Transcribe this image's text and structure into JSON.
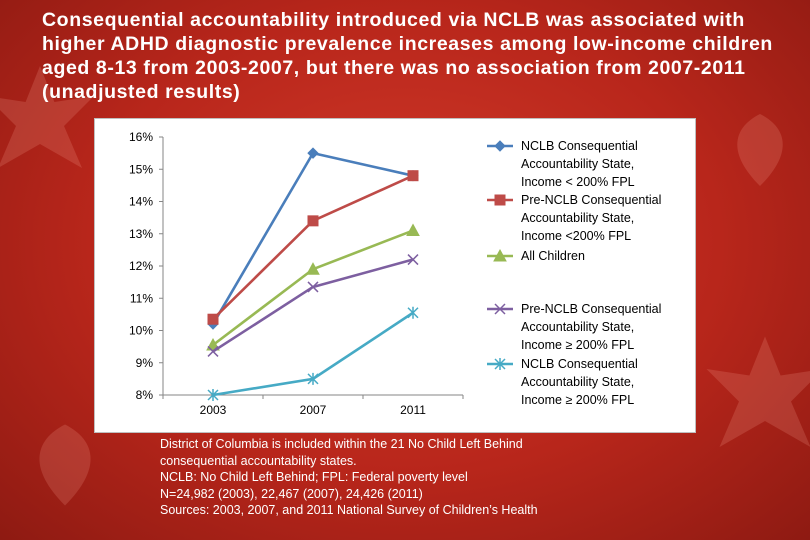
{
  "slide": {
    "title": "Consequential accountability introduced via NCLB was associated with higher ADHD diagnostic prevalence increases among low-income children aged 8-13 from 2003-2007, but there was no association from 2007-2011 (unadjusted results)",
    "notes": [
      "District of Columbia is included within the 21 No Child Left Behind",
      "consequential accountability states.",
      "NCLB: No Child Left Behind; FPL: Federal poverty level",
      "N=24,982 (2003), 22,467 (2007), 24,426 (2011)",
      "Sources: 2003, 2007, and 2011 National Survey of Children’s Health"
    ]
  },
  "chart_data": {
    "type": "line",
    "title": "",
    "xlabel": "",
    "ylabel": "",
    "categories": [
      "2003",
      "2007",
      "2011"
    ],
    "ylim": [
      8,
      16
    ],
    "yticks": [
      "8%",
      "9%",
      "10%",
      "11%",
      "12%",
      "13%",
      "14%",
      "15%",
      "16%"
    ],
    "grid": false,
    "legend_position": "right",
    "series": [
      {
        "name": "NCLB Consequential Accountability State, Income < 200% FPL",
        "legend_lines": [
          "NCLB Consequential",
          "Accountability State,",
          "Income < 200% FPL"
        ],
        "values": [
          10.2,
          15.5,
          14.8
        ],
        "color": "#4a7ebb",
        "marker": "diamond"
      },
      {
        "name": "Pre-NCLB Consequential Accountability State, Income <200% FPL",
        "legend_lines": [
          "Pre-NCLB Consequential",
          "Accountability State,",
          "Income <200% FPL"
        ],
        "values": [
          10.35,
          13.4,
          14.8
        ],
        "color": "#be4b48",
        "marker": "square"
      },
      {
        "name": "All Children",
        "legend_lines": [
          "All Children"
        ],
        "values": [
          9.55,
          11.9,
          13.1
        ],
        "color": "#98b954",
        "marker": "triangle"
      },
      {
        "name": "Pre-NCLB Consequential Accountability State, Income ≥ 200% FPL",
        "legend_lines": [
          "Pre-NCLB Consequential",
          "Accountability State,",
          "Income ≥ 200% FPL"
        ],
        "values": [
          9.35,
          11.35,
          12.2
        ],
        "color": "#7d5fa0",
        "marker": "x"
      },
      {
        "name": "NCLB Consequential Accountability State, Income ≥ 200% FPL",
        "legend_lines": [
          "NCLB Consequential",
          "Accountability State,",
          "Income ≥ 200% FPL"
        ],
        "values": [
          8.0,
          8.5,
          10.55
        ],
        "color": "#46aac5",
        "marker": "star"
      }
    ]
  }
}
